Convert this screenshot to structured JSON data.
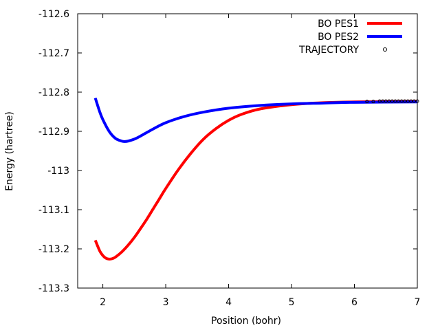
{
  "chart_data": {
    "type": "line",
    "title": "",
    "xlabel": "Position (bohr)",
    "ylabel": "Energy (hartree)",
    "xlim": [
      1.6,
      7
    ],
    "ylim": [
      -113.3,
      -112.6
    ],
    "xticks": [
      2,
      3,
      4,
      5,
      6,
      7
    ],
    "xtick_labels": [
      "2",
      "3",
      "4",
      "5",
      "6",
      "7"
    ],
    "yticks": [
      -113.3,
      -113.2,
      -113.1,
      -113,
      -112.9,
      -112.8,
      -112.7,
      -112.6
    ],
    "ytick_labels": [
      "-113.3",
      "-113.2",
      "-113.1",
      "-113",
      "-112.9",
      "-112.8",
      "-112.7",
      "-112.6"
    ],
    "grid": false,
    "legend_position": "top-right",
    "series": [
      {
        "name": "BO PES1",
        "color": "#ff0000",
        "style": "line",
        "x": [
          1.88,
          1.95,
          2.0,
          2.05,
          2.1,
          2.15,
          2.2,
          2.3,
          2.4,
          2.5,
          2.6,
          2.7,
          2.8,
          2.9,
          3.0,
          3.2,
          3.4,
          3.6,
          3.8,
          4.0,
          4.2,
          4.5,
          5.0,
          5.5,
          6.0,
          6.5,
          7.0
        ],
        "y": [
          -113.178,
          -113.205,
          -113.217,
          -113.224,
          -113.226,
          -113.225,
          -113.221,
          -113.208,
          -113.191,
          -113.171,
          -113.148,
          -113.124,
          -113.098,
          -113.072,
          -113.046,
          -112.998,
          -112.956,
          -112.92,
          -112.893,
          -112.872,
          -112.857,
          -112.843,
          -112.832,
          -112.827,
          -112.825,
          -112.824,
          -112.823
        ]
      },
      {
        "name": "BO PES2",
        "color": "#0000ff",
        "style": "line",
        "x": [
          1.88,
          1.95,
          2.0,
          2.1,
          2.2,
          2.3,
          2.35,
          2.4,
          2.5,
          2.6,
          2.8,
          3.0,
          3.3,
          3.6,
          4.0,
          4.5,
          5.0,
          5.5,
          6.0,
          7.0
        ],
        "y": [
          -112.815,
          -112.85,
          -112.87,
          -112.9,
          -112.918,
          -112.925,
          -112.926,
          -112.925,
          -112.92,
          -112.912,
          -112.894,
          -112.878,
          -112.862,
          -112.851,
          -112.841,
          -112.834,
          -112.83,
          -112.828,
          -112.826,
          -112.825
        ]
      },
      {
        "name": "TRAJECTORY",
        "color": "#000000",
        "style": "points",
        "x": [
          6.2,
          6.3,
          6.4,
          6.45,
          6.5,
          6.55,
          6.6,
          6.65,
          6.7,
          6.75,
          6.8,
          6.85,
          6.9,
          6.95,
          7.0
        ],
        "y": [
          -112.824,
          -112.824,
          -112.823,
          -112.823,
          -112.823,
          -112.823,
          -112.823,
          -112.823,
          -112.823,
          -112.823,
          -112.823,
          -112.823,
          -112.823,
          -112.823,
          -112.823
        ]
      }
    ]
  }
}
